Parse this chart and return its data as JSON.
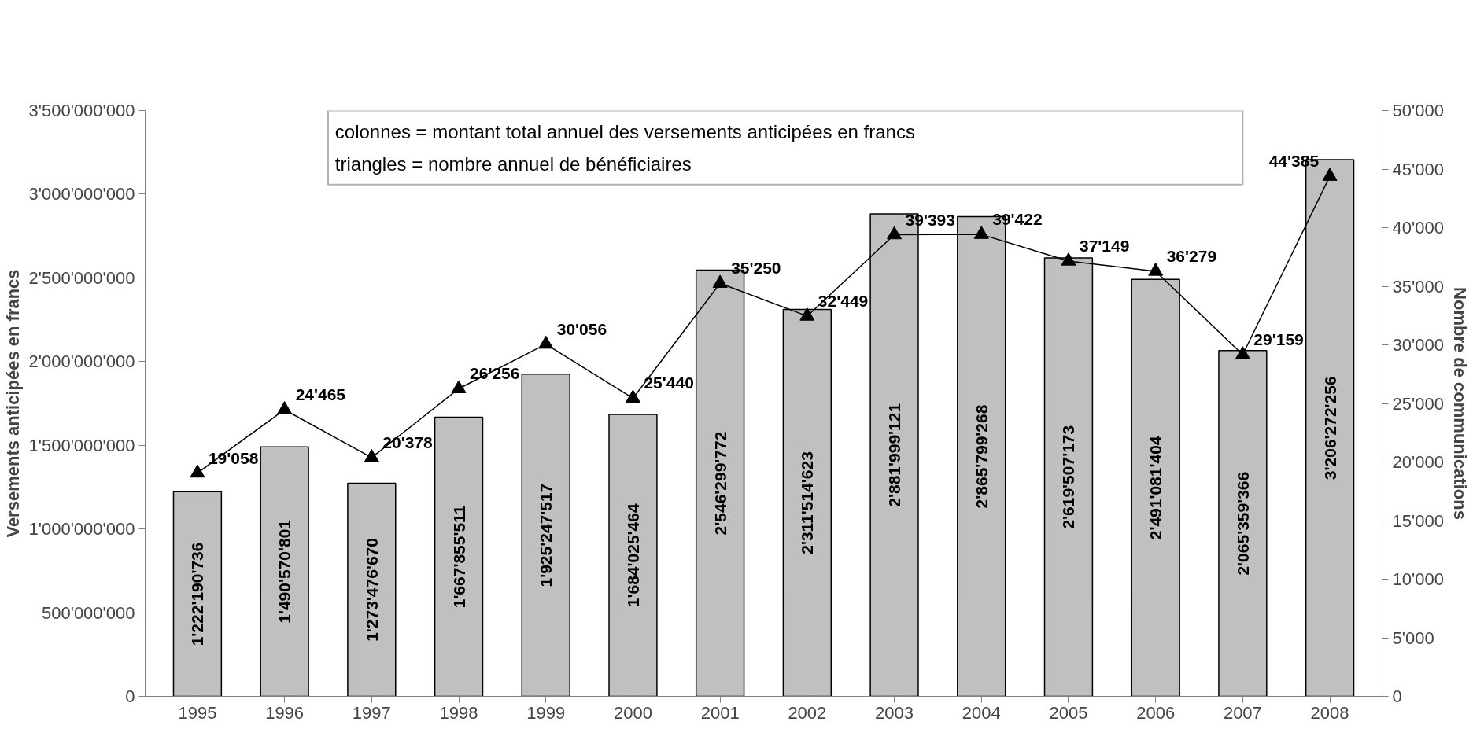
{
  "chart_data": {
    "type": "bar",
    "ylabel": "Versements anticipées en francs",
    "y2label": "Nombre de communications",
    "annotations": [
      "colonnes = montant total annuel des versements anticipées en francs",
      "triangles = nombre annuel de bénéficiaires"
    ],
    "categories": [
      "1995",
      "1996",
      "1997",
      "1998",
      "1999",
      "2000",
      "2001",
      "2002",
      "2003",
      "2004",
      "2005",
      "2006",
      "2007",
      "2008"
    ],
    "series": [
      {
        "color": "#c0c0c0",
        "values": [
          1222190736,
          1490570801,
          1273476670,
          1667855511,
          1925247517,
          1684025464,
          2546299772,
          2311514623,
          2881999121,
          2865799268,
          2619507173,
          2491081404,
          2065359366,
          3206272256
        ],
        "value_labels": [
          "1'222'190'736",
          "1'490'570'801",
          "1'273'476'670",
          "1'667'855'511",
          "1'925'247'517",
          "1'684'025'464",
          "2'546'299'772",
          "2'311'514'623",
          "2'881'999'121",
          "2'865'799'268",
          "2'619'507'173",
          "2'491'081'404",
          "2'065'359'366",
          "3'206'272'256"
        ]
      },
      {
        "type": "line",
        "axis": "y2",
        "color": "#000000",
        "marker": "triangle",
        "values": [
          19058,
          24465,
          20378,
          26256,
          30056,
          25440,
          35250,
          32449,
          39393,
          39422,
          37149,
          36279,
          29159,
          44385
        ],
        "value_labels": [
          "19'058",
          "24'465",
          "20'378",
          "26'256",
          "30'056",
          "25'440",
          "35'250",
          "32'449",
          "39'393",
          "39'422",
          "37'149",
          "36'279",
          "29'159",
          "44'385"
        ]
      }
    ],
    "ylim": [
      0,
      3500000000
    ],
    "yticks": [
      0,
      {
        "value": 500000000,
        "label": "500'000'000"
      },
      {
        "value": 1000000000,
        "label": "1'000'000'000"
      },
      {
        "value": 1500000000,
        "label": "1'500'000'000"
      },
      {
        "value": 2000000000,
        "label": "2'000'000'000"
      },
      {
        "value": 2500000000,
        "label": "2'500'000'000"
      },
      {
        "value": 3000000000,
        "label": "3'000'000'000"
      },
      {
        "value": 3500000000,
        "label": "3'500'000'000"
      }
    ],
    "y2lim": [
      0,
      50000
    ],
    "y2ticks": [
      0,
      {
        "value": 5000,
        "label": "5'000"
      },
      {
        "value": 10000,
        "label": "10'000"
      },
      {
        "value": 15000,
        "label": "15'000"
      },
      {
        "value": 20000,
        "label": "20'000"
      },
      {
        "value": 25000,
        "label": "25'000"
      },
      {
        "value": 30000,
        "label": "30'000"
      },
      {
        "value": 35000,
        "label": "35'000"
      },
      {
        "value": 40000,
        "label": "40'000"
      },
      {
        "value": 45000,
        "label": "45'000"
      },
      {
        "value": 50000,
        "label": "50'000"
      }
    ],
    "grid": false
  }
}
